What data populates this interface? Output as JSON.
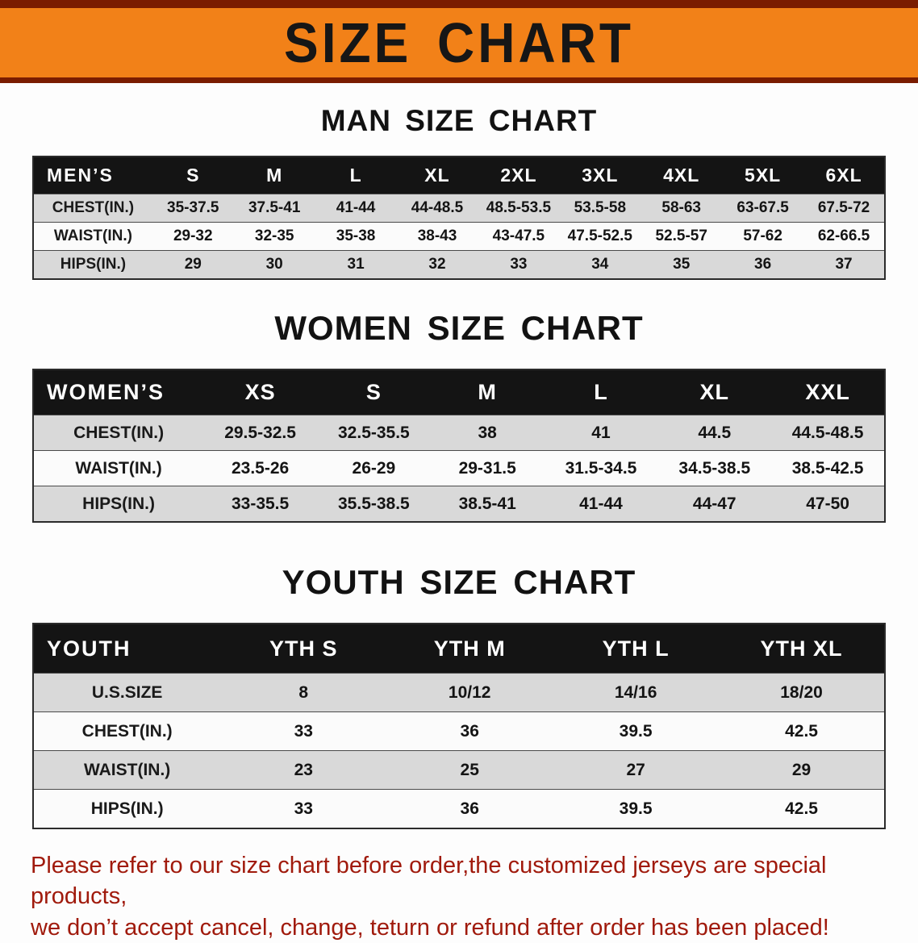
{
  "colors": {
    "banner_bg": "#f28118",
    "banner_border": "#7a1c00",
    "disclaimer_color": "#a01a0c"
  },
  "banner": {
    "title": "SIZE CHART"
  },
  "sections": [
    {
      "heading": "MAN SIZE CHART",
      "table": {
        "header": [
          "MEN’S",
          "S",
          "M",
          "L",
          "XL",
          "2XL",
          "3XL",
          "4XL",
          "5XL",
          "6XL"
        ],
        "rows": [
          [
            "CHEST(IN.)",
            "35-37.5",
            "37.5-41",
            "41-44",
            "44-48.5",
            "48.5-53.5",
            "53.5-58",
            "58-63",
            "63-67.5",
            "67.5-72"
          ],
          [
            "WAIST(IN.)",
            "29-32",
            "32-35",
            "35-38",
            "38-43",
            "43-47.5",
            "47.5-52.5",
            "52.5-57",
            "57-62",
            "62-66.5"
          ],
          [
            "HIPS(IN.)",
            "29",
            "30",
            "31",
            "32",
            "33",
            "34",
            "35",
            "36",
            "37"
          ]
        ]
      }
    },
    {
      "heading": "WOMEN SIZE CHART",
      "table": {
        "header": [
          "WOMEN’S",
          "XS",
          "S",
          "M",
          "L",
          "XL",
          "XXL"
        ],
        "rows": [
          [
            "CHEST(IN.)",
            "29.5-32.5",
            "32.5-35.5",
            "38",
            "41",
            "44.5",
            "44.5-48.5"
          ],
          [
            "WAIST(IN.)",
            "23.5-26",
            "26-29",
            "29-31.5",
            "31.5-34.5",
            "34.5-38.5",
            "38.5-42.5"
          ],
          [
            "HIPS(IN.)",
            "33-35.5",
            "35.5-38.5",
            "38.5-41",
            "41-44",
            "44-47",
            "47-50"
          ]
        ]
      }
    },
    {
      "heading": "YOUTH SIZE CHART",
      "table": {
        "header": [
          "YOUTH",
          "YTH S",
          "YTH M",
          "YTH L",
          "YTH XL"
        ],
        "rows": [
          [
            "U.S.SIZE",
            "8",
            "10/12",
            "14/16",
            "18/20"
          ],
          [
            "CHEST(IN.)",
            "33",
            "36",
            "39.5",
            "42.5"
          ],
          [
            "WAIST(IN.)",
            "23",
            "25",
            "27",
            "29"
          ],
          [
            "HIPS(IN.)",
            "33",
            "36",
            "39.5",
            "42.5"
          ]
        ]
      }
    }
  ],
  "footer": {
    "line1": "Please refer to our size chart before order,the customized jerseys are special products,",
    "line2": "we don’t accept cancel, change, teturn or refund after order has been placed!"
  }
}
